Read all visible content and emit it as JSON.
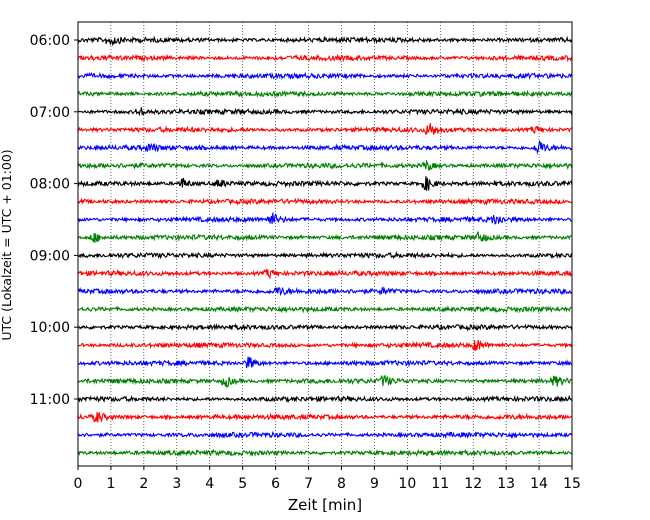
{
  "chart_data": {
    "type": "line",
    "title": "",
    "xlabel": "Zeit  [min]",
    "ylabel": "UTC (Lokalzeit = UTC + 01:00)",
    "xlim": [
      0,
      15
    ],
    "x_ticks": [
      "0",
      "1",
      "2",
      "3",
      "4",
      "5",
      "6",
      "7",
      "8",
      "9",
      "10",
      "11",
      "12",
      "13",
      "14",
      "15"
    ],
    "y_ticks": [
      "06:00",
      "07:00",
      "08:00",
      "09:00",
      "10:00",
      "11:00"
    ],
    "y_tick_rows": [
      0,
      4,
      8,
      12,
      16,
      20
    ],
    "grid": "vertical-dotted",
    "trace_interval_min": 15,
    "trace_count": 24,
    "trace_colors": [
      "#000000",
      "#ff0000",
      "#0000ff",
      "#008000"
    ],
    "events": [
      {
        "row": 0,
        "t": 1.0,
        "amp": 1.2
      },
      {
        "row": 4,
        "t": 1.9,
        "amp": 0.9
      },
      {
        "row": 5,
        "t": 10.7,
        "amp": 1.6
      },
      {
        "row": 5,
        "t": 13.9,
        "amp": 0.9
      },
      {
        "row": 6,
        "t": 2.2,
        "amp": 0.8
      },
      {
        "row": 6,
        "t": 14.0,
        "amp": 1.8
      },
      {
        "row": 7,
        "t": 10.6,
        "amp": 1.2
      },
      {
        "row": 8,
        "t": 3.2,
        "amp": 1.3
      },
      {
        "row": 8,
        "t": 4.3,
        "amp": 1.0
      },
      {
        "row": 8,
        "t": 10.6,
        "amp": 1.9
      },
      {
        "row": 10,
        "t": 5.9,
        "amp": 1.5
      },
      {
        "row": 10,
        "t": 12.7,
        "amp": 1.2
      },
      {
        "row": 11,
        "t": 0.5,
        "amp": 1.2
      },
      {
        "row": 11,
        "t": 12.2,
        "amp": 1.3
      },
      {
        "row": 13,
        "t": 5.8,
        "amp": 1.0
      },
      {
        "row": 14,
        "t": 6.1,
        "amp": 0.9
      },
      {
        "row": 14,
        "t": 9.3,
        "amp": 0.8
      },
      {
        "row": 17,
        "t": 12.1,
        "amp": 1.4
      },
      {
        "row": 18,
        "t": 5.2,
        "amp": 1.5
      },
      {
        "row": 19,
        "t": 4.5,
        "amp": 1.4
      },
      {
        "row": 19,
        "t": 9.3,
        "amp": 1.2
      },
      {
        "row": 19,
        "t": 14.5,
        "amp": 1.1
      },
      {
        "row": 21,
        "t": 0.6,
        "amp": 1.2
      }
    ]
  }
}
